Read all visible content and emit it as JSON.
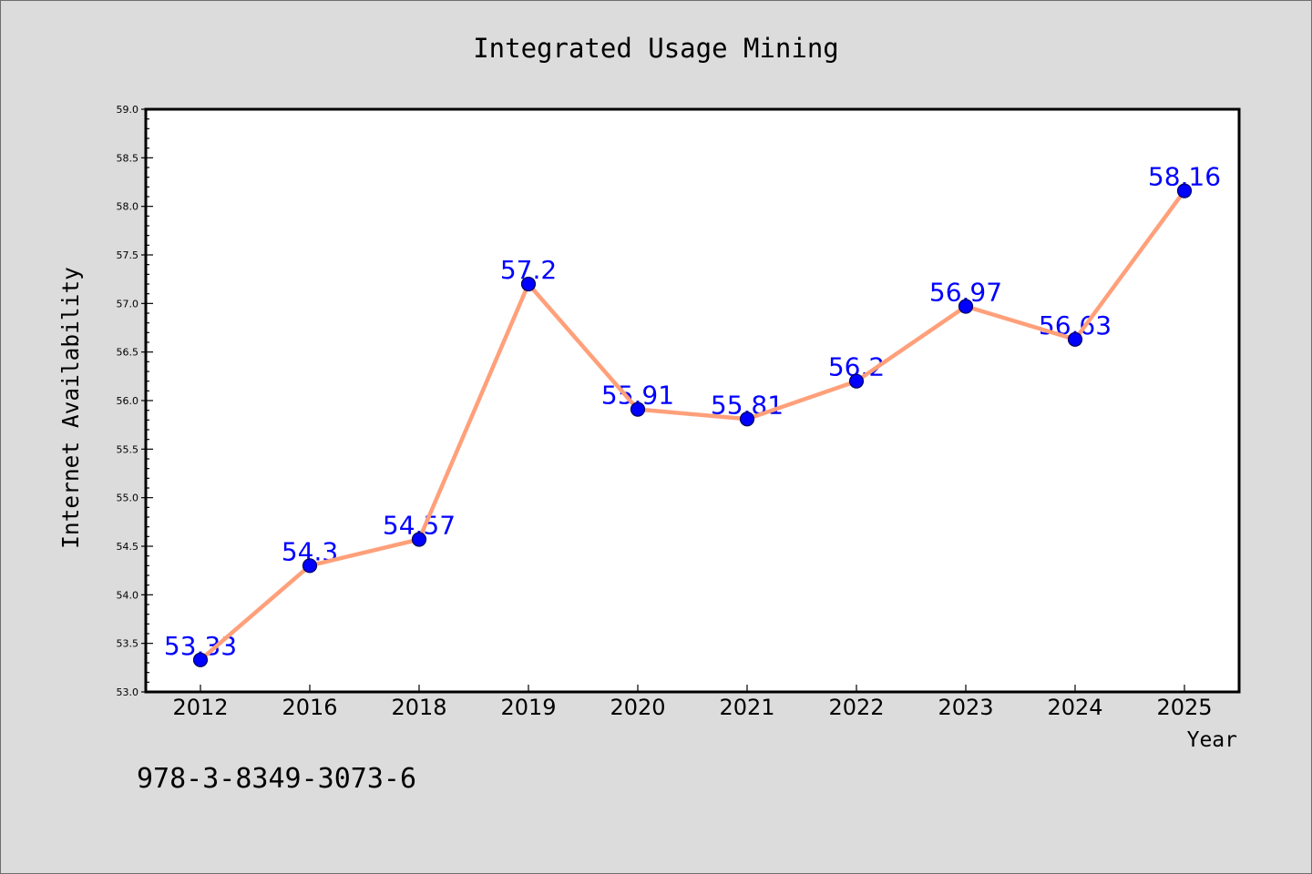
{
  "footer": {
    "text": "978-3-8349-3073-6"
  },
  "chart_data": {
    "type": "line",
    "title": "Integrated Usage Mining",
    "xlabel": "Year",
    "ylabel": "Internet Availability",
    "categories": [
      "2012",
      "2016",
      "2018",
      "2019",
      "2020",
      "2021",
      "2022",
      "2023",
      "2024",
      "2025"
    ],
    "series": [
      {
        "values": [
          53.33,
          54.3,
          54.57,
          57.2,
          55.91,
          55.81,
          56.2,
          56.97,
          56.63,
          58.16
        ],
        "data_labels": [
          "53.33",
          "54.3",
          "54.57",
          "57.2",
          "55.91",
          "55.81",
          "56.2",
          "56.97",
          "56.63",
          "58.16"
        ]
      }
    ],
    "ylim": [
      53.0,
      59.0
    ],
    "yticks": [
      "53.0",
      "53.5",
      "54.0",
      "54.5",
      "55.0",
      "55.5",
      "56.0",
      "56.5",
      "57.0",
      "57.5",
      "58.0",
      "58.5",
      "59.0"
    ],
    "grid": false,
    "colors": {
      "page_background": "#dcdcdc",
      "plot_background": "#ffffff",
      "line": "#ffa07a",
      "marker": "#0000ff",
      "data_label": "#0000ff"
    }
  }
}
